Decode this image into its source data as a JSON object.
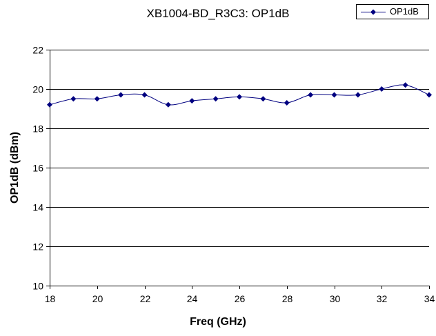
{
  "chart_data": {
    "type": "line",
    "title": "XB1004-BD_R3C3: OP1dB",
    "xlabel": "Freq (GHz)",
    "ylabel": "OP1dB (dBm)",
    "xlim": [
      18,
      34
    ],
    "ylim": [
      10,
      22
    ],
    "xticks": [
      18,
      20,
      22,
      24,
      26,
      28,
      30,
      32,
      34
    ],
    "yticks": [
      10,
      12,
      14,
      16,
      18,
      20,
      22
    ],
    "grid": "horizontal",
    "legend": "top-right",
    "series": [
      {
        "name": "OP1dB",
        "color": "#000080",
        "x": [
          18,
          19,
          20,
          21,
          22,
          23,
          24,
          25,
          26,
          27,
          28,
          29,
          30,
          31,
          32,
          33,
          34
        ],
        "y": [
          19.2,
          19.5,
          19.5,
          19.7,
          19.7,
          19.2,
          19.4,
          19.5,
          19.6,
          19.5,
          19.3,
          19.7,
          19.7,
          19.7,
          20.0,
          20.2,
          19.7
        ]
      }
    ]
  }
}
